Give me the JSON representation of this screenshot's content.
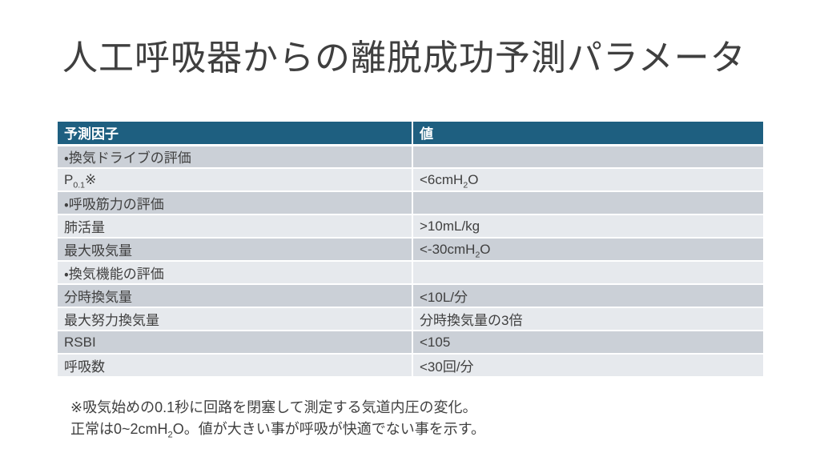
{
  "slide": {
    "title": "人工呼吸器からの離脱成功予測パラメータ",
    "colors": {
      "header_bg": "#1E5F80",
      "header_text": "#FFFFFF",
      "band_dark": "#CBD0D7",
      "band_light": "#E6E9ED",
      "text": "#404040",
      "title_text": "#3F3F3F",
      "slide_bg": "#FFFFFF"
    }
  },
  "table": {
    "columns": [
      "予測因子",
      "値"
    ],
    "rows": [
      {
        "factor": [
          {
            "t": "・換気ドライブの評価"
          }
        ],
        "value": [],
        "band": "dark"
      },
      {
        "factor": [
          {
            "t": "P"
          },
          {
            "t": "0.1",
            "sub": true
          },
          {
            "t": "※"
          }
        ],
        "value": [
          {
            "t": "<6cmH"
          },
          {
            "t": "2",
            "sub": true
          },
          {
            "t": "O"
          }
        ],
        "band": "light"
      },
      {
        "factor": [
          {
            "t": "・呼吸筋力の評価"
          }
        ],
        "value": [],
        "band": "dark"
      },
      {
        "factor": [
          {
            "t": "肺活量"
          }
        ],
        "value": [
          {
            "t": ">10mL/kg"
          }
        ],
        "band": "light"
      },
      {
        "factor": [
          {
            "t": "最大吸気量"
          }
        ],
        "value": [
          {
            "t": "<-30cmH"
          },
          {
            "t": "2",
            "sub": true
          },
          {
            "t": "O"
          }
        ],
        "band": "dark"
      },
      {
        "factor": [
          {
            "t": "・換気機能の評価"
          }
        ],
        "value": [],
        "band": "light"
      },
      {
        "factor": [
          {
            "t": "分時換気量"
          }
        ],
        "value": [
          {
            "t": "<10L/分"
          }
        ],
        "band": "dark"
      },
      {
        "factor": [
          {
            "t": "最大努力換気量"
          }
        ],
        "value": [
          {
            "t": "分時換気量の3倍"
          }
        ],
        "band": "light"
      },
      {
        "factor": [
          {
            "t": "RSBI"
          }
        ],
        "value": [
          {
            "t": "<105"
          }
        ],
        "band": "dark"
      },
      {
        "factor": [
          {
            "t": "呼吸数"
          }
        ],
        "value": [
          {
            "t": "<30回/分"
          }
        ],
        "band": "light"
      }
    ]
  },
  "footnote": {
    "lines": [
      [
        {
          "t": "※吸気始めの0.1秒に回路を閉塞して測定する気道内圧の変化。"
        }
      ],
      [
        {
          "t": "正常は0~2cmH"
        },
        {
          "t": "2",
          "sub": true
        },
        {
          "t": "O。値が大きい事が呼吸が快適でない事を示す。"
        }
      ]
    ]
  }
}
